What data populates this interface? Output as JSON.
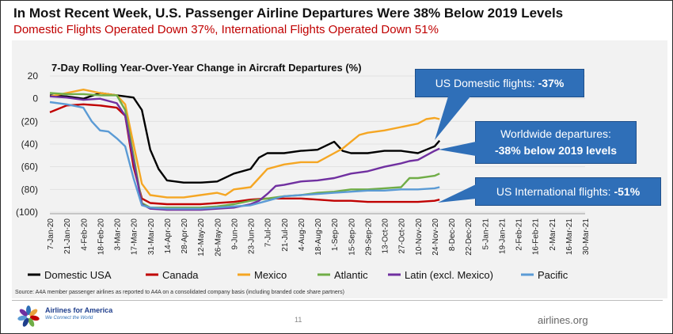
{
  "slide": {
    "title": "In Most Recent Week, U.S. Passenger Airline Departures Were 38% Below 2019 Levels",
    "subtitle": "Domestic Flights Operated Down 37%, International Flights Operated Down 51%",
    "source": "Source: A4A member passenger airlines as reported to A4A on a consolidated company basis (including branded code share partners)",
    "page_number": "11",
    "website": "airlines.org",
    "logo_name": "Airlines for America",
    "logo_tagline": "We Connect the World"
  },
  "callouts": {
    "domestic": {
      "label": "US Domestic flights: ",
      "value": "-37%"
    },
    "worldwide": {
      "line1": "Worldwide departures:",
      "line2": "-38% below 2019 levels"
    },
    "international": {
      "label": "US International flights: ",
      "value": "-51%"
    }
  },
  "colors": {
    "domestic": "#000000",
    "canada": "#c00000",
    "mexico": "#f5a623",
    "atlantic": "#70ad47",
    "latin": "#7030a0",
    "pacific": "#5b9bd5",
    "callout": "#2f6fb8",
    "title_red": "#c00000"
  },
  "chart_data": {
    "type": "line",
    "title": "7-Day Rolling Year-Over-Year Change in Aircraft Departures (%)",
    "xlabel": "",
    "ylabel": "",
    "ylim": [
      -100,
      20
    ],
    "yticks": [
      20,
      0,
      -20,
      -40,
      -60,
      -80,
      -100
    ],
    "ytick_labels": [
      "20",
      "0",
      "(20)",
      "(40)",
      "(60)",
      "(80)",
      "(100)"
    ],
    "categories": [
      "7-Jan-20",
      "21-Jan-20",
      "4-Feb-20",
      "18-Feb-20",
      "3-Mar-20",
      "17-Mar-20",
      "31-Mar-20",
      "14-Apr-20",
      "28-Apr-20",
      "12-May-20",
      "26-May-20",
      "9-Jun-20",
      "23-Jun-20",
      "7-Jul-20",
      "21-Jul-20",
      "4-Aug-20",
      "18-Aug-20",
      "1-Sep-20",
      "15-Sep-20",
      "29-Sep-20",
      "13-Oct-20",
      "27-Oct-20",
      "10-Nov-20",
      "24-Nov-20",
      "8-Dec-20",
      "22-Dec-20",
      "5-Jan-21",
      "19-Jan-21",
      "2-Feb-21",
      "16-Feb-21",
      "2-Mar-21",
      "16-Mar-21",
      "30-Mar-21"
    ],
    "grid": true,
    "legend_position": "bottom",
    "series": [
      {
        "name": "Domestic USA",
        "points": [
          [
            0,
            3
          ],
          [
            1,
            2
          ],
          [
            2,
            0
          ],
          [
            3,
            5
          ],
          [
            4,
            3
          ],
          [
            5,
            1
          ],
          [
            5.5,
            -10
          ],
          [
            6,
            -45
          ],
          [
            6.5,
            -62
          ],
          [
            7,
            -72
          ],
          [
            8,
            -74
          ],
          [
            9,
            -74
          ],
          [
            10,
            -73
          ],
          [
            11,
            -66
          ],
          [
            12,
            -62
          ],
          [
            12.5,
            -52
          ],
          [
            13,
            -48
          ],
          [
            14,
            -48
          ],
          [
            15,
            -46
          ],
          [
            16,
            -45
          ],
          [
            17,
            -38
          ],
          [
            17.5,
            -46
          ],
          [
            18,
            -48
          ],
          [
            19,
            -48
          ],
          [
            20,
            -46
          ],
          [
            21,
            -46
          ],
          [
            22,
            -48
          ],
          [
            22.5,
            -45
          ],
          [
            23,
            -42
          ],
          [
            23.3,
            -37
          ]
        ]
      },
      {
        "name": "Canada",
        "points": [
          [
            0,
            -12
          ],
          [
            1,
            -6
          ],
          [
            2,
            -5
          ],
          [
            3,
            -6
          ],
          [
            4,
            -8
          ],
          [
            4.5,
            -15
          ],
          [
            5,
            -60
          ],
          [
            5.5,
            -88
          ],
          [
            6,
            -92
          ],
          [
            7,
            -93
          ],
          [
            8,
            -93
          ],
          [
            9,
            -93
          ],
          [
            10,
            -92
          ],
          [
            11,
            -91
          ],
          [
            12,
            -89
          ],
          [
            13,
            -88
          ],
          [
            14,
            -88
          ],
          [
            15,
            -88
          ],
          [
            16,
            -89
          ],
          [
            17,
            -90
          ],
          [
            18,
            -90
          ],
          [
            19,
            -91
          ],
          [
            20,
            -91
          ],
          [
            21,
            -91
          ],
          [
            22,
            -91
          ],
          [
            23,
            -90
          ],
          [
            23.3,
            -89
          ]
        ]
      },
      {
        "name": "Mexico",
        "points": [
          [
            0,
            2
          ],
          [
            1,
            5
          ],
          [
            2,
            8
          ],
          [
            3,
            5
          ],
          [
            4,
            3
          ],
          [
            4.5,
            -5
          ],
          [
            5,
            -40
          ],
          [
            5.5,
            -75
          ],
          [
            6,
            -85
          ],
          [
            7,
            -87
          ],
          [
            8,
            -87
          ],
          [
            9,
            -85
          ],
          [
            10,
            -83
          ],
          [
            10.5,
            -85
          ],
          [
            11,
            -80
          ],
          [
            12,
            -78
          ],
          [
            12.5,
            -70
          ],
          [
            13,
            -62
          ],
          [
            14,
            -58
          ],
          [
            15,
            -56
          ],
          [
            16,
            -56
          ],
          [
            17,
            -48
          ],
          [
            17.5,
            -44
          ],
          [
            18,
            -38
          ],
          [
            18.5,
            -32
          ],
          [
            19,
            -30
          ],
          [
            20,
            -28
          ],
          [
            21,
            -25
          ],
          [
            22,
            -22
          ],
          [
            22.5,
            -18
          ],
          [
            23,
            -17
          ],
          [
            23.3,
            -18
          ]
        ]
      },
      {
        "name": "Atlantic",
        "points": [
          [
            0,
            5
          ],
          [
            1,
            4
          ],
          [
            2,
            4
          ],
          [
            3,
            3
          ],
          [
            4,
            3
          ],
          [
            4.5,
            -10
          ],
          [
            5,
            -50
          ],
          [
            5.5,
            -92
          ],
          [
            6,
            -96
          ],
          [
            7,
            -96
          ],
          [
            8,
            -96
          ],
          [
            9,
            -96
          ],
          [
            10,
            -95
          ],
          [
            11,
            -93
          ],
          [
            12,
            -90
          ],
          [
            13,
            -88
          ],
          [
            14,
            -86
          ],
          [
            15,
            -85
          ],
          [
            16,
            -83
          ],
          [
            17,
            -82
          ],
          [
            18,
            -80
          ],
          [
            19,
            -80
          ],
          [
            20,
            -79
          ],
          [
            21,
            -78
          ],
          [
            21.5,
            -70
          ],
          [
            22,
            -70
          ],
          [
            22.5,
            -69
          ],
          [
            23,
            -68
          ],
          [
            23.3,
            -66
          ]
        ]
      },
      {
        "name": "Latin (excl. Mexico)",
        "points": [
          [
            0,
            2
          ],
          [
            1,
            1
          ],
          [
            2,
            -1
          ],
          [
            3,
            0
          ],
          [
            4,
            -4
          ],
          [
            4.5,
            -15
          ],
          [
            5,
            -55
          ],
          [
            5.5,
            -93
          ],
          [
            6,
            -97
          ],
          [
            7,
            -98
          ],
          [
            8,
            -98
          ],
          [
            9,
            -98
          ],
          [
            10,
            -97
          ],
          [
            11,
            -96
          ],
          [
            12,
            -93
          ],
          [
            12.5,
            -90
          ],
          [
            13,
            -84
          ],
          [
            13.5,
            -77
          ],
          [
            14,
            -76
          ],
          [
            15,
            -73
          ],
          [
            16,
            -72
          ],
          [
            17,
            -70
          ],
          [
            18,
            -66
          ],
          [
            19,
            -64
          ],
          [
            20,
            -60
          ],
          [
            21,
            -57
          ],
          [
            21.5,
            -55
          ],
          [
            22,
            -54
          ],
          [
            22.5,
            -50
          ],
          [
            23,
            -46
          ],
          [
            23.3,
            -44
          ]
        ]
      },
      {
        "name": "Pacific",
        "points": [
          [
            0,
            -3
          ],
          [
            1,
            -5
          ],
          [
            2,
            -8
          ],
          [
            2.5,
            -20
          ],
          [
            3,
            -28
          ],
          [
            3.5,
            -29
          ],
          [
            4,
            -35
          ],
          [
            4.5,
            -42
          ],
          [
            5,
            -70
          ],
          [
            5.5,
            -94
          ],
          [
            6,
            -96
          ],
          [
            7,
            -97
          ],
          [
            8,
            -97
          ],
          [
            9,
            -97
          ],
          [
            10,
            -96
          ],
          [
            11,
            -95
          ],
          [
            12,
            -94
          ],
          [
            13,
            -90
          ],
          [
            14,
            -86
          ],
          [
            15,
            -85
          ],
          [
            16,
            -84
          ],
          [
            17,
            -83
          ],
          [
            18,
            -82
          ],
          [
            19,
            -81
          ],
          [
            20,
            -81
          ],
          [
            21,
            -80
          ],
          [
            22,
            -80
          ],
          [
            23,
            -79
          ],
          [
            23.3,
            -78
          ]
        ]
      }
    ]
  }
}
